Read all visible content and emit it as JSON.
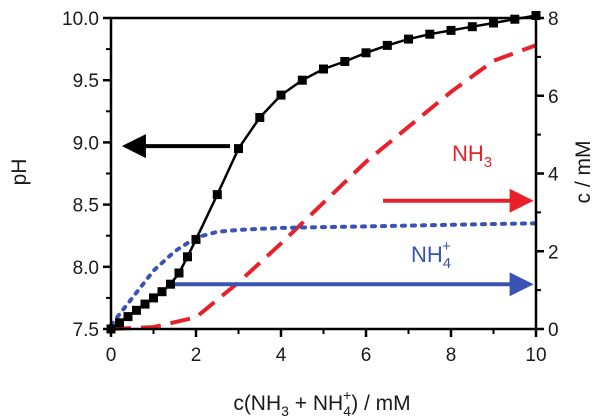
{
  "chart_data": {
    "type": "line",
    "xlabel_parts": {
      "a": "c(NH",
      "a_sub": "3",
      "b": " + NH",
      "b_sup": "+",
      "b_sub": "4",
      "c": ") / mM"
    },
    "ylabel_left": "pH",
    "ylabel_right": "c / mM",
    "xlim": [
      0,
      10
    ],
    "ylim_left": [
      7.5,
      10.0
    ],
    "ylim_right": [
      0,
      8
    ],
    "x_ticks": [
      "0",
      "2",
      "4",
      "6",
      "8",
      "10"
    ],
    "y_left_ticks": [
      "7.5",
      "8.0",
      "8.5",
      "9.0",
      "9.5",
      "10.0"
    ],
    "y_right_ticks": [
      "0",
      "2",
      "4",
      "6",
      "8"
    ],
    "series": [
      {
        "name": "pH",
        "axis": "left",
        "style": "line-square-markers",
        "color": "#000000",
        "x": [
          0,
          0.2,
          0.4,
          0.6,
          0.8,
          1.0,
          1.2,
          1.4,
          1.6,
          1.8,
          2.0,
          2.5,
          3.0,
          3.5,
          4.0,
          4.5,
          5.0,
          5.5,
          6.0,
          6.5,
          7.0,
          7.5,
          8.0,
          8.5,
          9.0,
          9.5,
          10.0
        ],
        "y": [
          7.5,
          7.55,
          7.6,
          7.65,
          7.7,
          7.75,
          7.8,
          7.86,
          7.95,
          8.08,
          8.22,
          8.58,
          8.95,
          9.2,
          9.38,
          9.5,
          9.59,
          9.65,
          9.72,
          9.78,
          9.83,
          9.87,
          9.9,
          9.93,
          9.96,
          9.99,
          10.02
        ]
      },
      {
        "name": "NH3",
        "label_main": "NH",
        "label_sub": "3",
        "axis": "right",
        "style": "dashed",
        "color": "#e8202a",
        "x": [
          0,
          1.0,
          2.0,
          3.0,
          4.0,
          5.0,
          6.0,
          7.0,
          8.0,
          9.0,
          10.0
        ],
        "y": [
          0,
          0.05,
          0.3,
          1.2,
          2.2,
          3.25,
          4.3,
          5.2,
          6.1,
          6.9,
          7.3
        ]
      },
      {
        "name": "NH4+",
        "label_main": "NH",
        "label_sup": "+",
        "label_sub": "4",
        "axis": "right",
        "style": "dotted",
        "color": "#3953b5",
        "x": [
          0,
          0.5,
          1.0,
          1.5,
          2.0,
          2.5,
          3.0,
          4.0,
          5.0,
          6.0,
          7.0,
          8.0,
          9.0,
          10.0
        ],
        "y": [
          0.1,
          0.8,
          1.5,
          2.0,
          2.35,
          2.5,
          2.55,
          2.6,
          2.62,
          2.64,
          2.66,
          2.68,
          2.7,
          2.72
        ]
      }
    ],
    "arrows": [
      {
        "name": "pH-axis-arrow",
        "color": "#000000",
        "direction": "left",
        "axis": "left",
        "x_from": 2.8,
        "x_to": 0.35,
        "y": 8.97
      },
      {
        "name": "NH3-axis-arrow",
        "color": "#e8202a",
        "direction": "right",
        "axis": "right",
        "x_from": 6.4,
        "x_to": 9.85,
        "y": 3.3
      },
      {
        "name": "NH4-axis-arrow",
        "color": "#3953b5",
        "direction": "right",
        "axis": "right",
        "x_from": 1.5,
        "x_to": 9.85,
        "y": 1.15
      }
    ],
    "grid": false,
    "legend": "none"
  }
}
